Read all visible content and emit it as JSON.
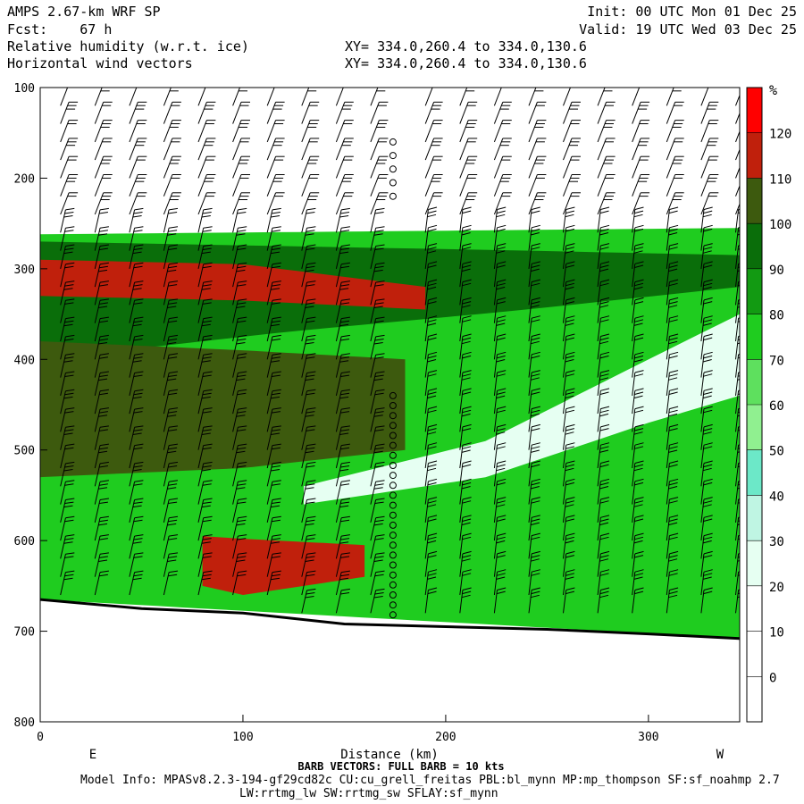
{
  "header": {
    "model": "AMPS 2.67-km WRF SP",
    "fcst": "Fcst:    67 h",
    "field1": "Relative humidity (w.r.t. ice)",
    "field2": "Horizontal wind vectors",
    "init": "Init: 00 UTC Mon 01 Dec 25",
    "valid": "Valid: 19 UTC Wed 03 Dec 25",
    "xy1": "XY= 334.0,260.4 to 334.0,130.6",
    "xy2": "XY= 334.0,260.4 to 334.0,130.6"
  },
  "footer": {
    "barb": "BARB VECTORS:  FULL BARB = 10 kts",
    "model_info": "Model Info: MPASv8.2.3-194-gf29cd82c CU:cu_grell_freitas PBL:bl_mynn MP:mp_thompson SF:sf_noahmp 2.7",
    "model_info2": "LW:rrtmg_lw SW:rrtmg_sw SFLAY:sf_mynn"
  },
  "chart_data": {
    "type": "heatmap",
    "title": "Relative humidity (w.r.t. ice)",
    "xlabel": "Distance (km)",
    "ylabel": "",
    "xlim": [
      0,
      345
    ],
    "ylim": [
      800,
      100
    ],
    "x_ticks": [
      0,
      100,
      200,
      300
    ],
    "y_ticks": [
      100,
      200,
      300,
      400,
      500,
      600,
      700,
      800
    ],
    "x_end_labels": {
      "left": "E",
      "right": "W"
    },
    "colorbar": {
      "unit": "%",
      "ticks": [
        0,
        10,
        20,
        30,
        40,
        50,
        60,
        70,
        80,
        90,
        100,
        110,
        120
      ],
      "colors": [
        "#ffffff",
        "#ffffff",
        "#ffffff",
        "#e6fff2",
        "#bff5e3",
        "#6ce8c8",
        "#90f090",
        "#5ee05e",
        "#1fcc1f",
        "#129a12",
        "#0a6e0a",
        "#3d5a0e",
        "#c0200c",
        "#ff0000"
      ]
    },
    "terrain_pressure": {
      "x": [
        0,
        50,
        100,
        150,
        200,
        250,
        300,
        345
      ],
      "p": [
        665,
        675,
        680,
        692,
        695,
        698,
        703,
        708
      ]
    },
    "rh_layers": [
      {
        "name": "moist layer",
        "color": "#1fcc1f",
        "x": [
          0,
          345
        ],
        "top": [
          262,
          255
        ],
        "bottom": [
          665,
          708
        ]
      },
      {
        "name": "upper dark band",
        "color": "#0a6e0a",
        "x": [
          0,
          120,
          240,
          345
        ],
        "top": [
          270,
          275,
          280,
          285
        ],
        "bottom": [
          400,
          370,
          345,
          320
        ]
      },
      {
        "name": "upper max",
        "color": "#c0200c",
        "x": [
          0,
          100,
          190
        ],
        "top": [
          290,
          295,
          320
        ],
        "bottom": [
          330,
          335,
          345
        ]
      },
      {
        "name": "mid olive band",
        "color": "#3d5a0e",
        "x": [
          0,
          100,
          180
        ],
        "top": [
          380,
          390,
          400
        ],
        "bottom": [
          530,
          520,
          500
        ]
      },
      {
        "name": "dry slot",
        "color": "#e6fff2",
        "x": [
          130,
          220,
          300,
          345
        ],
        "top": [
          540,
          490,
          400,
          350
        ],
        "bottom": [
          560,
          530,
          470,
          440
        ]
      },
      {
        "name": "lower max",
        "color": "#c0200c",
        "x": [
          80,
          100,
          160
        ],
        "top": [
          595,
          598,
          605
        ],
        "bottom": [
          650,
          660,
          640
        ]
      }
    ],
    "barbs": {
      "columns_km": [
        10,
        27,
        44,
        61,
        78,
        95,
        112,
        129,
        146,
        163,
        190,
        207,
        224,
        241,
        258,
        275,
        292,
        309,
        326,
        343
      ],
      "levels_hpa": [
        120,
        140,
        160,
        180,
        200,
        220,
        240,
        260,
        280,
        300,
        320,
        340,
        360,
        380,
        400,
        420,
        440,
        460,
        480,
        500,
        520,
        540,
        560,
        580,
        600,
        620,
        640,
        660,
        680
      ],
      "calm_column_km": 174
    }
  }
}
